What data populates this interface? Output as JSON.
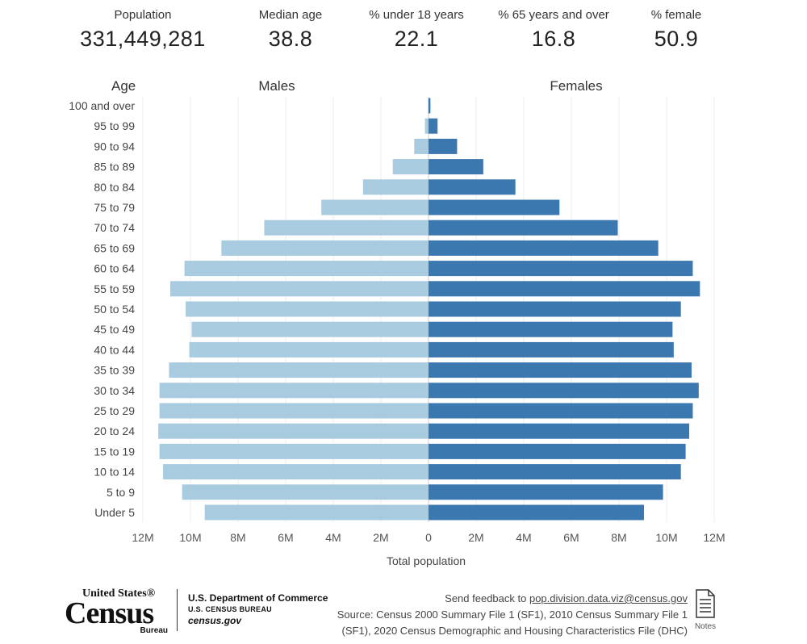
{
  "stats": [
    {
      "label": "Population",
      "value": "331,449,281"
    },
    {
      "label": "Median age",
      "value": "38.8"
    },
    {
      "label": "% under 18 years",
      "value": "22.1"
    },
    {
      "label": "% 65 years and over",
      "value": "16.8"
    },
    {
      "label": "% female",
      "value": "50.9"
    }
  ],
  "chart_data": {
    "type": "bar",
    "orientation": "horizontal-diverging",
    "age_header": "Age",
    "categories": [
      "100 and over",
      "95 to 99",
      "90 to 94",
      "85 to 89",
      "80 to 84",
      "75 to 79",
      "70 to 74",
      "65 to 69",
      "60 to 64",
      "55 to 59",
      "50 to 54",
      "45 to 49",
      "40 to 44",
      "35 to 39",
      "30 to 34",
      "25 to 29",
      "20 to 24",
      "15 to 19",
      "10 to 14",
      "5 to 9",
      "Under 5"
    ],
    "series": [
      {
        "name": "Males",
        "values": [
          0.02,
          0.15,
          0.6,
          1.5,
          2.75,
          4.5,
          6.9,
          8.7,
          10.25,
          10.85,
          10.2,
          9.95,
          10.05,
          10.9,
          11.3,
          11.3,
          11.35,
          11.3,
          11.15,
          10.35,
          9.4
        ]
      },
      {
        "name": "Females",
        "values": [
          0.08,
          0.38,
          1.2,
          2.3,
          3.65,
          5.5,
          7.95,
          9.65,
          11.1,
          11.4,
          10.6,
          10.25,
          10.3,
          11.05,
          11.35,
          11.1,
          10.95,
          10.8,
          10.6,
          9.85,
          9.05
        ]
      }
    ],
    "xlabel": "Total population",
    "x_ticks_left": [
      "12M",
      "10M",
      "8M",
      "6M",
      "4M",
      "2M"
    ],
    "x_ticks_center": "0",
    "x_ticks_right": [
      "2M",
      "4M",
      "6M",
      "8M",
      "10M",
      "12M"
    ],
    "xlim": [
      -12,
      12
    ],
    "units": "millions",
    "colors": {
      "males": "#a9cbe0",
      "females": "#3c78b0",
      "grid": "#eeeeee",
      "center": "#cccccc"
    },
    "grid": true
  },
  "footer": {
    "logo_top": "United States®",
    "logo_main": "Census",
    "logo_sub": "Bureau",
    "dept": "U.S. Department of Commerce",
    "bureau": "U.S. CENSUS BUREAU",
    "site": "census.gov",
    "feedback_prefix": "Send feedback to ",
    "feedback_email": "pop.division.data.viz@census.gov",
    "source_line1": "Source: Census 2000 Summary File 1 (SF1), 2010 Census Summary File 1",
    "source_line2": "(SF1), 2020 Census Demographic and Housing Characteristics File (DHC)",
    "notes_label": "Notes",
    "notes_icon": "document-icon"
  }
}
